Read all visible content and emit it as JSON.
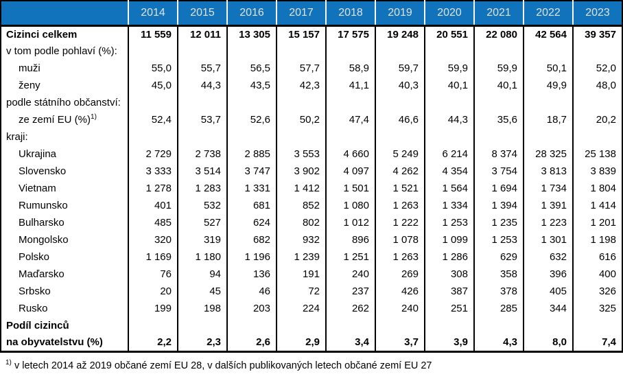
{
  "table": {
    "years": [
      "2014",
      "2015",
      "2016",
      "2017",
      "2018",
      "2019",
      "2020",
      "2021",
      "2022",
      "2023"
    ],
    "rows": [
      {
        "label": "Cizinci celkem",
        "indent": 0,
        "bold": true,
        "values": [
          "11 559",
          "12 011",
          "13 305",
          "15 157",
          "17 575",
          "19 248",
          "20 551",
          "22 080",
          "42 564",
          "39 357"
        ]
      },
      {
        "label": "v tom podle pohlaví (%):",
        "indent": 0,
        "bold": false,
        "values": []
      },
      {
        "label": "muži",
        "indent": 1,
        "bold": false,
        "values": [
          "55,0",
          "55,7",
          "56,5",
          "57,7",
          "58,9",
          "59,7",
          "59,9",
          "59,9",
          "50,1",
          "52,0"
        ]
      },
      {
        "label": "ženy",
        "indent": 1,
        "bold": false,
        "values": [
          "45,0",
          "44,3",
          "43,5",
          "42,3",
          "41,1",
          "40,3",
          "40,1",
          "40,1",
          "49,9",
          "48,0"
        ]
      },
      {
        "label": "podle státního občanství:",
        "indent": 0,
        "bold": false,
        "values": []
      },
      {
        "label": "ze zemí EU (%)",
        "sup": "1)",
        "indent": 1,
        "bold": false,
        "values": [
          "52,4",
          "53,7",
          "52,6",
          "50,2",
          "47,4",
          "46,6",
          "44,3",
          "35,6",
          "18,7",
          "20,2"
        ]
      },
      {
        "label": "kraji:",
        "indent": 0,
        "bold": false,
        "values": []
      },
      {
        "label": "Ukrajina",
        "indent": 1,
        "bold": false,
        "values": [
          "2 729",
          "2 738",
          "2 885",
          "3 553",
          "4 660",
          "5 249",
          "6 214",
          "8 374",
          "28 325",
          "25 138"
        ]
      },
      {
        "label": "Slovensko",
        "indent": 1,
        "bold": false,
        "values": [
          "3 333",
          "3 514",
          "3 747",
          "3 902",
          "4 097",
          "4 262",
          "4 354",
          "3 754",
          "3 813",
          "3 839"
        ]
      },
      {
        "label": "Vietnam",
        "indent": 1,
        "bold": false,
        "values": [
          "1 278",
          "1 283",
          "1 331",
          "1 412",
          "1 501",
          "1 521",
          "1 564",
          "1 694",
          "1 734",
          "1 804"
        ]
      },
      {
        "label": "Rumunsko",
        "indent": 1,
        "bold": false,
        "values": [
          "401",
          "532",
          "681",
          "852",
          "1 080",
          "1 263",
          "1 334",
          "1 394",
          "1 391",
          "1 414"
        ]
      },
      {
        "label": "Bulharsko",
        "indent": 1,
        "bold": false,
        "values": [
          "485",
          "527",
          "624",
          "802",
          "1 012",
          "1 222",
          "1 253",
          "1 235",
          "1 223",
          "1 201"
        ]
      },
      {
        "label": "Mongolsko",
        "indent": 1,
        "bold": false,
        "values": [
          "320",
          "319",
          "682",
          "932",
          "896",
          "1 078",
          "1 099",
          "1 253",
          "1 301",
          "1 198"
        ]
      },
      {
        "label": "Polsko",
        "indent": 1,
        "bold": false,
        "values": [
          "1 169",
          "1 180",
          "1 196",
          "1 239",
          "1 251",
          "1 263",
          "1 286",
          "629",
          "632",
          "616"
        ]
      },
      {
        "label": "Maďarsko",
        "indent": 1,
        "bold": false,
        "values": [
          "76",
          "94",
          "136",
          "191",
          "240",
          "269",
          "308",
          "358",
          "396",
          "400"
        ]
      },
      {
        "label": "Srbsko",
        "indent": 1,
        "bold": false,
        "values": [
          "20",
          "45",
          "46",
          "72",
          "237",
          "426",
          "387",
          "378",
          "405",
          "326"
        ]
      },
      {
        "label": "Rusko",
        "indent": 1,
        "bold": false,
        "values": [
          "199",
          "198",
          "203",
          "224",
          "262",
          "240",
          "251",
          "285",
          "344",
          "325"
        ]
      },
      {
        "label": "Podíl cizinců",
        "indent": 0,
        "bold": true,
        "values": []
      },
      {
        "label": "na obyvatelstvu (%)",
        "indent": 0,
        "bold": true,
        "values": [
          "2,2",
          "2,3",
          "2,6",
          "2,9",
          "3,4",
          "3,7",
          "3,9",
          "4,3",
          "8,0",
          "7,4"
        ]
      }
    ]
  },
  "footnote": {
    "marker": "1)",
    "text": "v letech 2014 až 2019 občané zemí EU 28, v dalších publikovaných letech občané zemí EU 27"
  },
  "colors": {
    "header_bg": "#1173BC",
    "header_text": "#E3E3E3",
    "border": "#000000",
    "text": "#000000"
  }
}
